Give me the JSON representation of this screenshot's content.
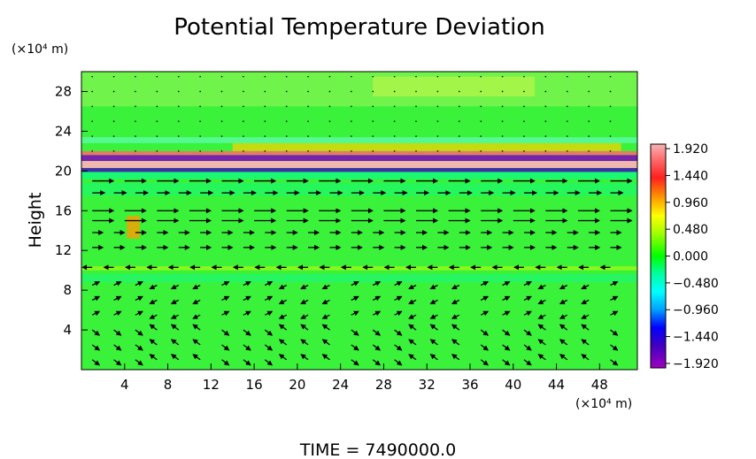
{
  "chart_data": {
    "type": "heatmap",
    "title": "Potential Temperature Deviation",
    "ylabel": "Height",
    "x_unit": "(×10⁴ m)",
    "y_unit": "(×10⁴ m)",
    "xlim": [
      0,
      51.5
    ],
    "ylim": [
      0,
      30
    ],
    "x_ticks": [
      4,
      8,
      12,
      16,
      20,
      24,
      28,
      32,
      36,
      40,
      44,
      48
    ],
    "y_ticks": [
      4,
      8,
      12,
      16,
      20,
      24,
      28
    ],
    "colorbar": {
      "range": [
        -2.0,
        2.0
      ],
      "tick_labels": [
        "1.920",
        "1.440",
        "0.960",
        "0.480",
        "0.000",
        "−0.480",
        "−0.960",
        "−1.440",
        "−1.920"
      ],
      "tick_values": [
        1.92,
        1.44,
        0.96,
        0.48,
        0.0,
        -0.48,
        -0.96,
        -1.44,
        -1.92
      ]
    },
    "field_description": "Mostly near-zero (green) field with a strong alternating positive/negative deviation layer near height 20-22 and a weak positive band near height 10; overlaid wind vector arrows.",
    "time_label": "TIME  =  7490000.0"
  }
}
